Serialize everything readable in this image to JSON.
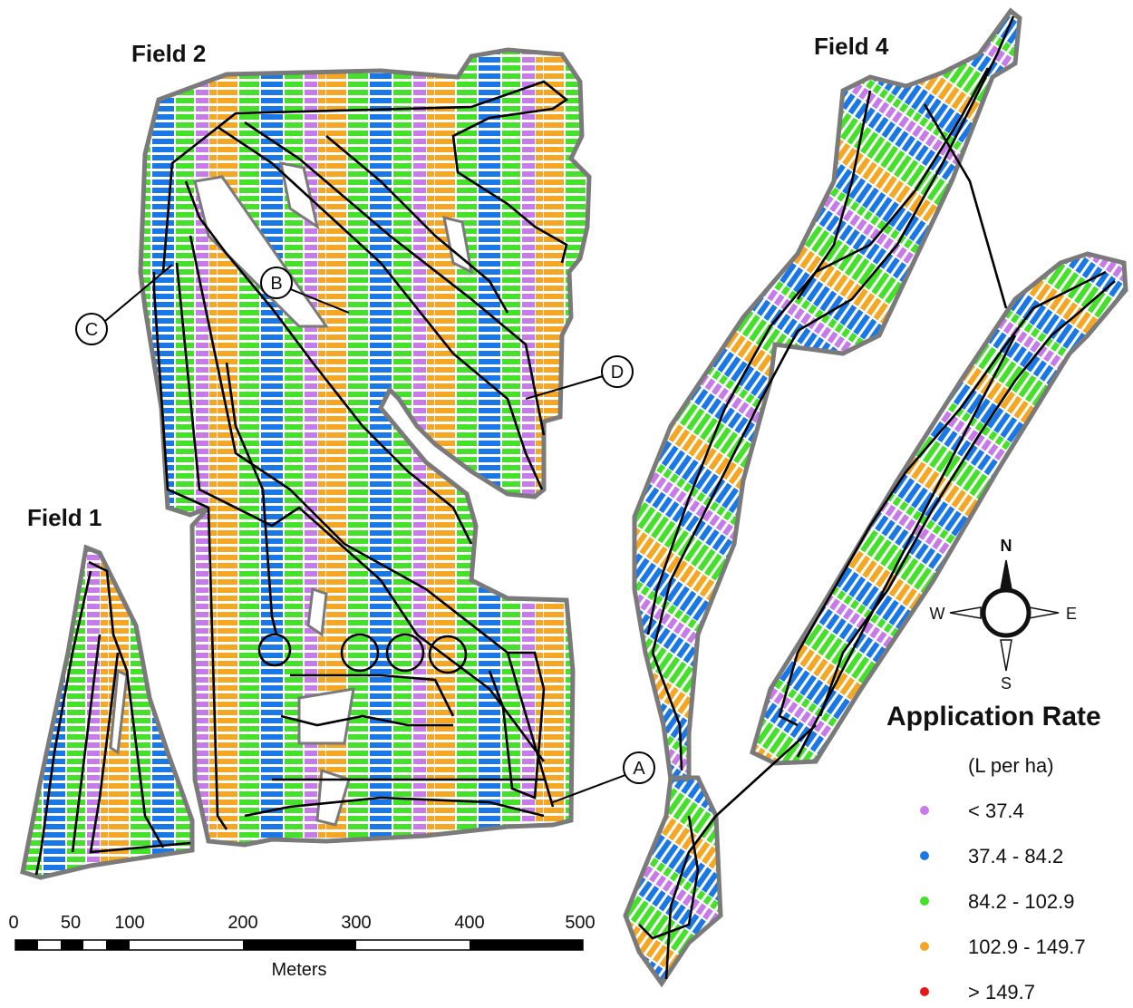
{
  "fields": [
    {
      "id": "field-1",
      "label": "Field 1"
    },
    {
      "id": "field-2",
      "label": "Field 2"
    },
    {
      "id": "field-4",
      "label": "Field 4"
    }
  ],
  "callouts": [
    "A",
    "B",
    "C",
    "D"
  ],
  "compass": {
    "n": "N",
    "s": "S",
    "e": "E",
    "w": "W"
  },
  "scale_bar": {
    "ticks": [
      "0",
      "50",
      "100",
      "200",
      "300",
      "400",
      "500"
    ],
    "unit": "Meters"
  },
  "legend": {
    "title": "Application Rate",
    "unit": "(L per ha)",
    "classes": [
      {
        "label": "< 37.4",
        "color": "#c77be8"
      },
      {
        "label": "37.4 - 84.2",
        "color": "#1a78e6"
      },
      {
        "label": "84.2 - 102.9",
        "color": "#44e02a"
      },
      {
        "label": "102.9 - 149.7",
        "color": "#f5a623"
      },
      {
        "label": "> 149.7",
        "color": "#e61919"
      }
    ]
  },
  "colors": {
    "boundary": "#7a7a7a",
    "path": "#000000"
  }
}
